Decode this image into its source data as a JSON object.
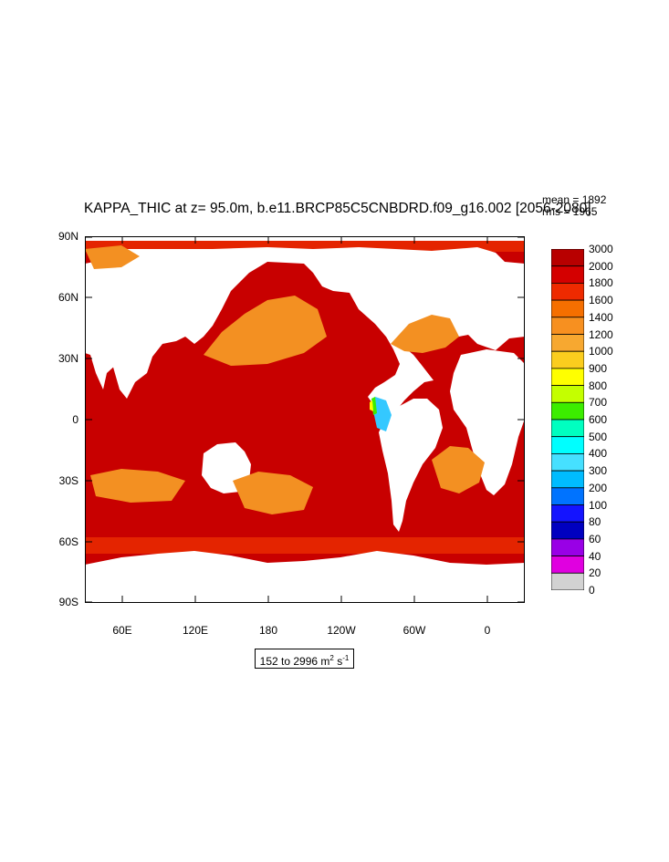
{
  "title": "KAPPA_THIC at z=  95.0m, b.e11.BRCP85C5CNBDRD.f09_g16.002 [2056-2080]",
  "stats": {
    "mean": "mean = 1892",
    "rms": "rms = 1965"
  },
  "y_axis_ticks": [
    "90N",
    "60N",
    "30N",
    "0",
    "30S",
    "60S",
    "90S"
  ],
  "x_axis_ticks": [
    "60E",
    "120E",
    "180",
    "120W",
    "60W",
    "0"
  ],
  "range_label": {
    "text": "152 to 2996 m",
    "unit_sup1": "2",
    "mid": " s",
    "unit_sup2": "-1"
  },
  "colorbar": {
    "labels": [
      "3000",
      "2000",
      "1800",
      "1600",
      "1400",
      "1200",
      "1000",
      "900",
      "800",
      "700",
      "600",
      "500",
      "400",
      "300",
      "200",
      "100",
      "80",
      "60",
      "40",
      "20",
      "0"
    ],
    "colors": [
      "#b80000",
      "#d40000",
      "#ee2a00",
      "#f56f00",
      "#f79020",
      "#f7a830",
      "#fbcd1e",
      "#ffff00",
      "#c4ff00",
      "#3ced00",
      "#00ffc0",
      "#00ffff",
      "#46e0ff",
      "#00bcff",
      "#0073ff",
      "#1414ff",
      "#0000c0",
      "#9900e6",
      "#e000e0",
      "#d2d2d2",
      "#737373"
    ]
  },
  "map_colors": {
    "ocean_high": "#c80000",
    "ocean_mid": "#e42400",
    "ocean_orange": "#f39022",
    "land": "#ffffff",
    "coastal_low": "#34c8ff"
  }
}
